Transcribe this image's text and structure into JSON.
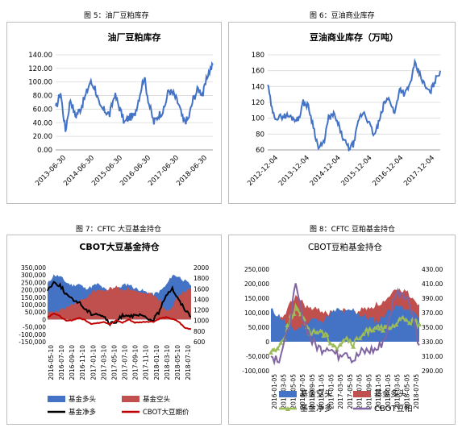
{
  "captions": {
    "fig5": "图 5：油厂豆粕库存",
    "fig6": "图 6：豆油商业库存",
    "fig7": "图 7：CFTC 大豆基金持仓",
    "fig8": "图 8：CFTC 豆粕基金持仓"
  },
  "chart_data": [
    {
      "id": "fig5",
      "type": "line",
      "title": "油厂豆粕库存",
      "xlabel": "",
      "ylabel": "",
      "ylim": [
        0,
        140
      ],
      "y_ticks": [
        "0.00",
        "20.00",
        "40.00",
        "60.00",
        "80.00",
        "100.00",
        "120.00",
        "140.00"
      ],
      "x_ticks": [
        "2013-06-30",
        "2014-06-30",
        "2015-06-30",
        "2016-06-30",
        "2017-06-30",
        "2018-06-30"
      ],
      "series": [
        {
          "color": "#4472c4",
          "x": [
            "2013-05",
            "2013-07",
            "2013-09",
            "2013-11",
            "2014-01",
            "2014-03",
            "2014-05",
            "2014-07",
            "2014-09",
            "2014-11",
            "2015-01",
            "2015-03",
            "2015-05",
            "2015-07",
            "2015-09",
            "2015-11",
            "2016-01",
            "2016-03",
            "2016-05",
            "2016-07",
            "2016-09",
            "2016-11",
            "2017-01",
            "2017-03",
            "2017-05",
            "2017-07",
            "2017-09",
            "2017-11",
            "2018-01",
            "2018-03",
            "2018-05",
            "2018-07",
            "2018-08"
          ],
          "values": [
            60,
            85,
            28,
            75,
            50,
            60,
            78,
            100,
            92,
            62,
            58,
            52,
            82,
            62,
            40,
            48,
            50,
            78,
            108,
            68,
            40,
            52,
            58,
            88,
            82,
            68,
            42,
            45,
            75,
            90,
            82,
            112,
            125
          ]
        }
      ]
    },
    {
      "id": "fig6",
      "type": "line",
      "title": "豆油商业库存（万吨）",
      "xlabel": "",
      "ylabel": "",
      "ylim": [
        60,
        180
      ],
      "y_ticks": [
        "60",
        "80",
        "100",
        "120",
        "140",
        "160",
        "180"
      ],
      "x_ticks": [
        "2012-12-04",
        "2013-12-04",
        "2014-12-04",
        "2015-12-04",
        "2016-12-04",
        "2017-12-04"
      ],
      "series": [
        {
          "color": "#4472c4",
          "x": [
            "2012-12",
            "2013-02",
            "2013-04",
            "2013-06",
            "2013-08",
            "2013-10",
            "2013-12",
            "2014-02",
            "2014-04",
            "2014-06",
            "2014-08",
            "2014-10",
            "2014-12",
            "2015-02",
            "2015-04",
            "2015-06",
            "2015-08",
            "2015-10",
            "2015-12",
            "2016-02",
            "2016-04",
            "2016-06",
            "2016-08",
            "2016-10",
            "2016-12",
            "2017-02",
            "2017-04",
            "2017-06",
            "2017-08",
            "2017-10",
            "2017-12",
            "2018-02",
            "2018-04",
            "2018-06",
            "2018-07"
          ],
          "values": [
            143,
            105,
            100,
            103,
            103,
            100,
            98,
            120,
            115,
            90,
            62,
            68,
            100,
            105,
            90,
            72,
            62,
            68,
            100,
            108,
            93,
            78,
            96,
            120,
            125,
            105,
            138,
            130,
            142,
            168,
            155,
            140,
            132,
            148,
            160
          ]
        }
      ]
    },
    {
      "id": "fig7",
      "type": "area",
      "title": "CBOT大豆基金持仓",
      "xlabel": "",
      "ylabel": "",
      "ylim": [
        -150000,
        350000
      ],
      "y2lim": [
        600,
        2000
      ],
      "y_ticks": [
        "350,000",
        "300,000",
        "250,000",
        "200,000",
        "150,000",
        "100,000",
        "50,000",
        "0",
        "-50,000",
        "-100,000",
        "-150,000"
      ],
      "y2_ticks": [
        "2000",
        "1800",
        "1600",
        "1400",
        "1200",
        "1000",
        "800",
        "600"
      ],
      "x_ticks": [
        "2016-05-10",
        "2016-07-10",
        "2016-09-10",
        "2016-11-10",
        "2017-01-10",
        "2017-03-10",
        "2017-05-10",
        "2017-07-10",
        "2017-09-10",
        "2017-11-10",
        "2018-01-10",
        "2018-03-10",
        "2018-05-10",
        "2018-07-10"
      ],
      "legend_position": "bottom",
      "series": [
        {
          "name": "基金多头",
          "color": "#4472c4",
          "axis": "left",
          "values": [
            240000,
            300000,
            290000,
            250000,
            230000,
            240000,
            210000,
            220000,
            240000,
            210000,
            180000,
            200000,
            230000,
            240000,
            210000,
            200000,
            180000,
            170000,
            190000,
            230000,
            300000,
            290000,
            260000,
            230000
          ]
        },
        {
          "name": "基金空头",
          "color": "#c0504d",
          "axis": "left",
          "values": [
            40000,
            50000,
            60000,
            80000,
            100000,
            120000,
            140000,
            180000,
            200000,
            190000,
            210000,
            220000,
            200000,
            210000,
            190000,
            170000,
            180000,
            170000,
            130000,
            60000,
            90000,
            160000,
            190000,
            210000
          ]
        },
        {
          "name": "基金净多",
          "color": "#000000",
          "axis": "left",
          "values": [
            200000,
            250000,
            230000,
            170000,
            130000,
            120000,
            70000,
            40000,
            40000,
            20000,
            -30000,
            -20000,
            30000,
            30000,
            20000,
            30000,
            0,
            0,
            60000,
            170000,
            210000,
            130000,
            70000,
            20000
          ]
        },
        {
          "name": "CBOT大豆期价",
          "color": "#c00000",
          "axis": "right",
          "values": [
            1060,
            1140,
            1080,
            990,
            1010,
            1050,
            1010,
            940,
            950,
            980,
            930,
            1000,
            960,
            1020,
            960,
            970,
            980,
            980,
            1040,
            1060,
            1030,
            980,
            860,
            840
          ]
        }
      ]
    },
    {
      "id": "fig8",
      "type": "area",
      "title": "CBOT豆粕基金持仓",
      "xlabel": "",
      "ylabel": "",
      "ylim": [
        -100000,
        250000
      ],
      "y2lim": [
        290,
        430
      ],
      "y_ticks": [
        "250,000",
        "200,000",
        "150,000",
        "100,000",
        "50,000",
        "0",
        "-50,000",
        "-100,000"
      ],
      "y2_ticks": [
        "430.00",
        "410.00",
        "390.00",
        "370.00",
        "350.00",
        "330.00",
        "310.00",
        "290.00"
      ],
      "x_ticks": [
        "2016-01-05",
        "2016-03-05",
        "2016-05-05",
        "2016-07-05",
        "2016-09-05",
        "2016-11-05",
        "2017-01-05",
        "2017-03-05",
        "2017-05-05",
        "2017-07-05",
        "2017-09-05",
        "2017-11-05",
        "2018-01-05",
        "2018-03-05",
        "2018-05-05",
        "2018-07-05"
      ],
      "legend_position": "bottom",
      "series": [
        {
          "name": "基金空头",
          "color": "#4472c4",
          "axis": "left",
          "values": [
            110000,
            90000,
            60000,
            40000,
            60000,
            80000,
            70000,
            90000,
            110000,
            100000,
            110000,
            90000,
            80000,
            70000,
            100000,
            120000,
            120000,
            100000,
            90000
          ]
        },
        {
          "name": "基金多头",
          "color": "#c0504d",
          "axis": "left",
          "values": [
            60000,
            70000,
            110000,
            160000,
            130000,
            110000,
            110000,
            100000,
            90000,
            110000,
            100000,
            110000,
            120000,
            130000,
            140000,
            170000,
            180000,
            160000,
            130000
          ]
        },
        {
          "name": "基金净多",
          "color": "#9bbb59",
          "axis": "left",
          "values": [
            -30000,
            -20000,
            50000,
            120000,
            70000,
            30000,
            40000,
            10000,
            -20000,
            10000,
            -10000,
            20000,
            40000,
            60000,
            40000,
            50000,
            80000,
            70000,
            60000
          ]
        },
        {
          "name": "CBOT豆粕",
          "color": "#8064a2",
          "axis": "right",
          "values": [
            310,
            308,
            340,
            405,
            360,
            330,
            320,
            325,
            310,
            320,
            305,
            315,
            318,
            320,
            340,
            395,
            400,
            380,
            325
          ]
        }
      ]
    }
  ]
}
